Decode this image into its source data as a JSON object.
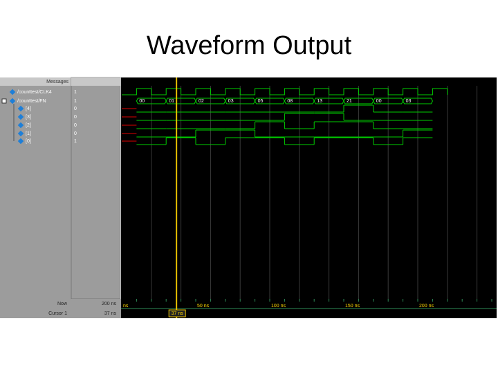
{
  "title": "Waveform Output",
  "panel": {
    "header": "Messages",
    "signals": [
      {
        "name": "/counttest/CLK4",
        "value": "1"
      },
      {
        "name": "/counttest/FN",
        "value": "1"
      },
      {
        "name": "[4]",
        "value": "0"
      },
      {
        "name": "[3]",
        "value": "0"
      },
      {
        "name": "[2]",
        "value": "0"
      },
      {
        "name": "[1]",
        "value": "0"
      },
      {
        "name": "[0]",
        "value": "1"
      }
    ]
  },
  "bus_values": [
    "00",
    "01",
    "02",
    "03",
    "05",
    "08",
    "13",
    "21",
    "00",
    "03"
  ],
  "status": {
    "now_label": "Now",
    "now_value": "200 ns",
    "cursor_label": "Cursor 1",
    "cursor_value": "37 ns",
    "cursor_marker": "37 ns"
  },
  "time_axis": [
    "ns",
    "50 ns",
    "100 ns",
    "150 ns",
    "200 ns"
  ]
}
